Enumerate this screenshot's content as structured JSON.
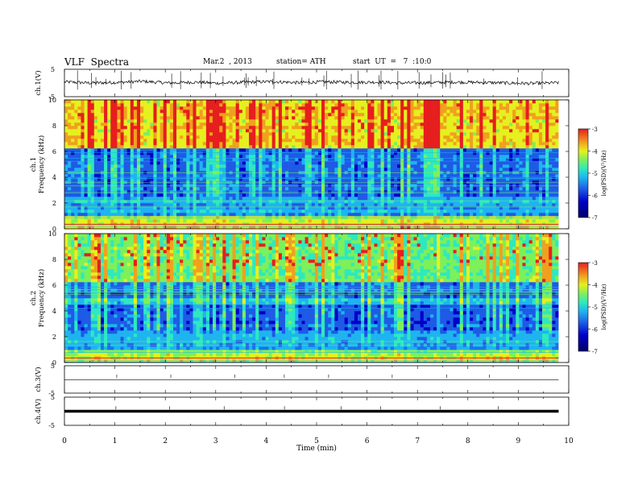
{
  "header": {
    "title": "VLF  Spectra",
    "date": "Mar.2  , 2013",
    "station": "station= ATH",
    "start": "start  UT  =   7  :10:0"
  },
  "colors": {
    "spectrogram": [
      "#000068",
      "#0000c8",
      "#1e5ae6",
      "#1eb4f0",
      "#2ee8c0",
      "#7df05a",
      "#e6f01e",
      "#f0a01e",
      "#e61e1e"
    ],
    "trace": "#000000"
  },
  "chart_data": [
    {
      "type": "line",
      "title": "",
      "ylabel": "ch.1(V)",
      "ylim": [
        -5,
        5
      ],
      "yticks": [
        "5",
        "-5"
      ],
      "xlim": [
        0,
        10
      ],
      "series": [
        {
          "values": [
            0.4,
            0.0,
            0.2,
            0.6,
            0.0,
            0.3,
            -0.1,
            0.3,
            0.5,
            0.1,
            0.4,
            0.2,
            0.3,
            0.0,
            0.1,
            0.3,
            0.2,
            0.0,
            -0.2,
            0.1
          ]
        }
      ]
    },
    {
      "type": "heatmap",
      "title": "",
      "ylabel": "ch.1\nFrequency  (kHz)",
      "ylim": [
        0,
        10
      ],
      "yticks": [
        "0",
        "2",
        "4",
        "6",
        "8",
        "10"
      ],
      "xlim": [
        0,
        9.8
      ],
      "colorbar": {
        "label": "log(PSD)(V²/Hz)",
        "range": [
          -7,
          -3
        ],
        "ticks": [
          "-3",
          "-4",
          "-5",
          "-6",
          "-7"
        ]
      }
    },
    {
      "type": "heatmap",
      "title": "",
      "ylabel": "ch.2\nFrequency  (kHz)",
      "ylim": [
        0,
        10
      ],
      "yticks": [
        "0",
        "2",
        "4",
        "6",
        "8",
        "10"
      ],
      "xlim": [
        0,
        9.8
      ],
      "colorbar": {
        "label": "log(PSD)(V²/Hz)",
        "range": [
          -7,
          -3
        ],
        "ticks": [
          "-3",
          "-4",
          "-5",
          "-6",
          "-7"
        ]
      }
    },
    {
      "type": "line",
      "title": "",
      "ylabel": "ch.3(V)",
      "ylim": [
        -5,
        5
      ],
      "yticks": [
        "5",
        "-5"
      ],
      "xlim": [
        0,
        10
      ],
      "series": [
        {
          "values": [
            -0.1,
            -0.1,
            -0.1,
            -0.1,
            -0.1,
            -0.1,
            -0.1,
            -0.1,
            -0.1,
            -0.1
          ]
        }
      ]
    },
    {
      "type": "line",
      "title": "",
      "ylabel": "ch.4(V)",
      "ylim": [
        -5,
        5
      ],
      "yticks": [
        "5",
        "-5"
      ],
      "xlim": [
        0,
        10
      ],
      "series": [
        {
          "values": [
            0.0,
            0.0,
            0.0,
            0.0,
            0.0,
            0.0,
            0.0,
            0.0,
            0.0,
            0.0
          ]
        }
      ]
    }
  ],
  "xaxis": {
    "label": "Time  (min)",
    "ticks": [
      "0",
      "1",
      "2",
      "3",
      "4",
      "5",
      "6",
      "7",
      "8",
      "9",
      "10"
    ]
  }
}
